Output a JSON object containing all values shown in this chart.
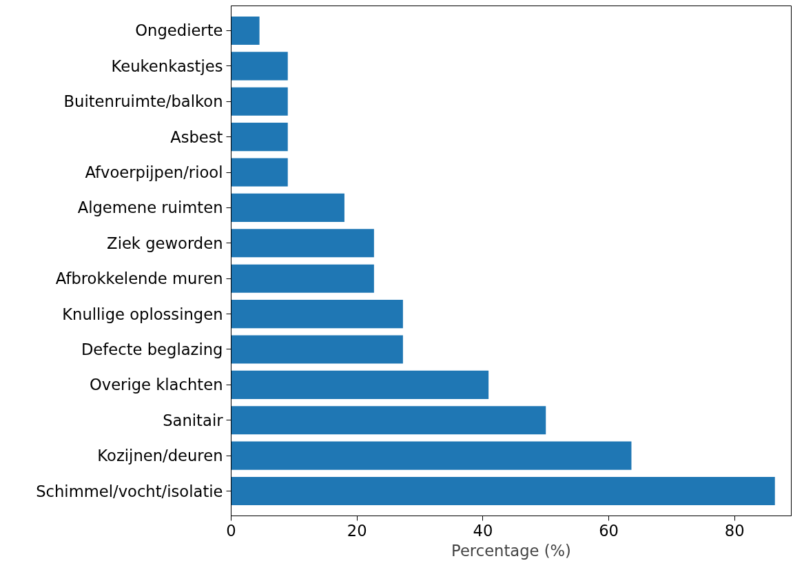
{
  "chart_data": {
    "type": "bar",
    "orientation": "horizontal",
    "xlabel": "Percentage (%)",
    "categories": [
      "Ongedierte",
      "Keukenkastjes",
      "Buitenruimte/balkon",
      "Asbest",
      "Afvoerpijpen/riool",
      "Algemene ruimten",
      "Ziek geworden",
      "Afbrokkelende muren",
      "Knullige oplossingen",
      "Defecte beglazing",
      "Overige klachten",
      "Sanitair",
      "Kozijnen/deuren",
      "Schimmel/vocht/isolatie"
    ],
    "values": [
      4.5,
      9,
      9,
      9,
      9,
      18,
      22.7,
      22.7,
      27.3,
      27.3,
      40.9,
      50,
      63.6,
      86.4
    ],
    "color": "#1f77b4",
    "xlim": [
      0,
      89
    ],
    "xticks": [
      0,
      20,
      40,
      60,
      80
    ],
    "grid": false
  }
}
